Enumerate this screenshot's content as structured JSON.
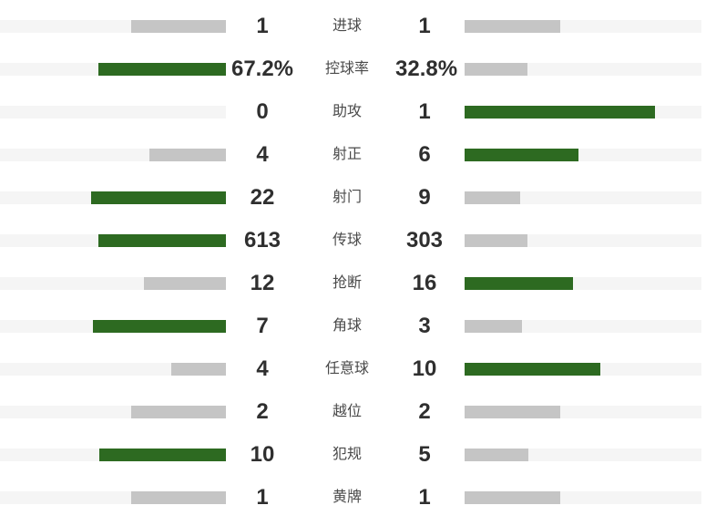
{
  "colors": {
    "bar_leading": "#2d6a21",
    "bar_trailing": "#c5c5c5",
    "bar_track": "#f5f5f5",
    "value_text": "#2f2f2f",
    "label_text": "#4a4a4a"
  },
  "stats": [
    {
      "id": "goals",
      "label": "进球",
      "home": 1,
      "away": 1,
      "home_display": "1",
      "away_display": "1"
    },
    {
      "id": "possession",
      "label": "控球率",
      "home": 67.2,
      "away": 32.8,
      "home_display": "67.2%",
      "away_display": "32.8%"
    },
    {
      "id": "assists",
      "label": "助攻",
      "home": 0,
      "away": 1,
      "home_display": "0",
      "away_display": "1"
    },
    {
      "id": "shots-on-target",
      "label": "射正",
      "home": 4,
      "away": 6,
      "home_display": "4",
      "away_display": "6"
    },
    {
      "id": "shots",
      "label": "射门",
      "home": 22,
      "away": 9,
      "home_display": "22",
      "away_display": "9"
    },
    {
      "id": "passes",
      "label": "传球",
      "home": 613,
      "away": 303,
      "home_display": "613",
      "away_display": "303"
    },
    {
      "id": "tackles",
      "label": "抢断",
      "home": 12,
      "away": 16,
      "home_display": "12",
      "away_display": "16"
    },
    {
      "id": "corners",
      "label": "角球",
      "home": 7,
      "away": 3,
      "home_display": "7",
      "away_display": "3"
    },
    {
      "id": "free-kicks",
      "label": "任意球",
      "home": 4,
      "away": 10,
      "home_display": "4",
      "away_display": "10"
    },
    {
      "id": "offsides",
      "label": "越位",
      "home": 2,
      "away": 2,
      "home_display": "2",
      "away_display": "2"
    },
    {
      "id": "fouls",
      "label": "犯规",
      "home": 10,
      "away": 5,
      "home_display": "10",
      "away_display": "5"
    },
    {
      "id": "yellow-cards",
      "label": "黄牌",
      "home": 1,
      "away": 1,
      "home_display": "1",
      "away_display": "1"
    }
  ],
  "chart_data": {
    "type": "bar",
    "subtype": "mirrored two-sided comparison (match statistics)",
    "title": "",
    "categories": [
      "进球",
      "控球率",
      "助攻",
      "射正",
      "射门",
      "传球",
      "抢断",
      "角球",
      "任意球",
      "越位",
      "犯规",
      "黄牌"
    ],
    "series": [
      {
        "name": "home",
        "side": "left",
        "values": [
          1,
          67.2,
          0,
          4,
          22,
          613,
          12,
          7,
          4,
          2,
          10,
          1
        ]
      },
      {
        "name": "away",
        "side": "right",
        "values": [
          1,
          32.8,
          1,
          6,
          9,
          303,
          16,
          3,
          10,
          2,
          5,
          1
        ]
      }
    ],
    "value_display": {
      "home": [
        "1",
        "67.2%",
        "0",
        "4",
        "22",
        "613",
        "12",
        "7",
        "4",
        "2",
        "10",
        "1"
      ],
      "away": [
        "1",
        "32.8%",
        "1",
        "6",
        "9",
        "303",
        "16",
        "3",
        "10",
        "2",
        "5",
        "1"
      ]
    },
    "bar_scaling": "bar length proportional to value / (home + away) per row",
    "highlight_rule": "side with the higher value is green (#2d6a21); lower value and ties are gray (#c5c5c5)",
    "grid": false,
    "legend": false
  }
}
